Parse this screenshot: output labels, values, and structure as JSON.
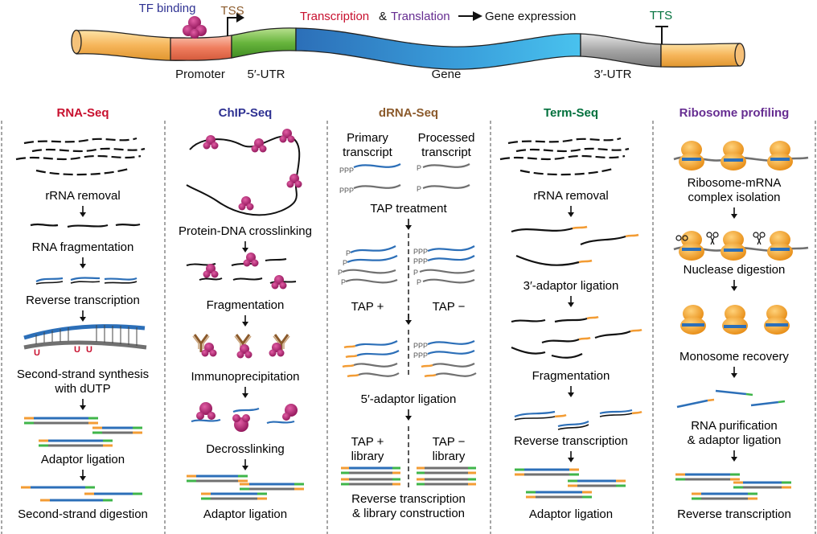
{
  "gene_diagram": {
    "tf_binding": "TF binding",
    "tss": "TSS",
    "tts": "TTS",
    "transcription": "Transcription",
    "amp": "&",
    "translation": "Translation",
    "gene_expression": "Gene expression",
    "promoter": "Promoter",
    "utr5": "5′-UTR",
    "gene": "Gene",
    "utr3": "3′-UTR"
  },
  "colors": {
    "rnaseq": "#c8102e",
    "chipseq": "#2e3192",
    "drnaseq": "#8b5a2b",
    "termseq": "#00703c",
    "riboprof": "#662d91",
    "tf_binding": "#2e3192",
    "tss": "#8b5a2b",
    "tts": "#00703c"
  },
  "panels": {
    "rnaseq": {
      "title": "RNA-Seq",
      "steps": [
        "rRNA removal",
        "RNA fragmentation",
        "Reverse transcription",
        "Second-strand synthesis",
        "with dUTP",
        "Adaptor ligation",
        "Second-strand digestion"
      ]
    },
    "chipseq": {
      "title": "ChIP-Seq",
      "steps": [
        "Protein-DNA crosslinking",
        "Fragmentation",
        "Immunoprecipitation",
        "Decrosslinking",
        "Adaptor ligation"
      ]
    },
    "drnaseq": {
      "title": "dRNA-Seq",
      "primary": [
        "Primary",
        "transcript"
      ],
      "processed": [
        "Processed",
        "transcript"
      ],
      "steps": [
        "TAP treatment",
        "TAP +",
        "TAP −",
        "5′-adaptor ligation",
        "Reverse transcription",
        "& library construction"
      ],
      "library_plus": [
        "TAP +",
        "library"
      ],
      "library_minus": [
        "TAP −",
        "library"
      ],
      "ppp": "PPP",
      "p": "P"
    },
    "termseq": {
      "title": "Term-Seq",
      "steps": [
        "rRNA removal",
        "3′-adaptor ligation",
        "Fragmentation",
        "Reverse transcription",
        "Adaptor ligation"
      ]
    },
    "riboprof": {
      "title": "Ribosome profiling",
      "steps": [
        "Ribosome-mRNA",
        "complex isolation",
        "Nuclease digestion",
        "Monosome recovery",
        "RNA purification",
        "& adaptor ligation",
        "Reverse transcription"
      ]
    }
  }
}
